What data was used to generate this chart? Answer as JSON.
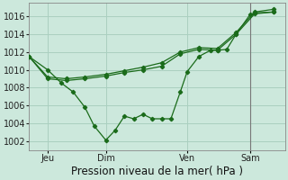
{
  "bg_color": "#cce8dc",
  "grid_color": "#aacfc0",
  "line_color": "#1a6b1a",
  "marker_color": "#1a6b1a",
  "xlabel": "Pression niveau de la mer( hPa )",
  "ylim": [
    1001.0,
    1017.5
  ],
  "yticks": [
    1002,
    1004,
    1006,
    1008,
    1010,
    1012,
    1014,
    1016
  ],
  "xlim": [
    0.0,
    11.0
  ],
  "xtick_labels": [
    "Jeu",
    "Dim",
    "Ven",
    "Sam"
  ],
  "xtick_positions": [
    0.8,
    3.3,
    6.8,
    9.5
  ],
  "vline_x": 9.5,
  "series1_x": [
    0.0,
    0.8,
    1.6,
    2.4,
    3.3,
    4.1,
    4.9,
    5.7,
    6.5,
    7.3,
    8.1,
    8.9,
    9.7,
    10.5
  ],
  "series1_y": [
    1011.5,
    1009.0,
    1008.8,
    1009.0,
    1009.3,
    1009.7,
    1010.0,
    1010.4,
    1011.8,
    1012.3,
    1012.2,
    1014.0,
    1016.3,
    1016.5
  ],
  "series2_x": [
    0.0,
    0.8,
    1.6,
    2.4,
    3.3,
    4.1,
    4.9,
    5.7,
    6.5,
    7.3,
    8.1,
    8.9,
    9.7,
    10.5
  ],
  "series2_y": [
    1011.5,
    1009.2,
    1009.0,
    1009.2,
    1009.5,
    1009.9,
    1010.3,
    1010.8,
    1012.0,
    1012.5,
    1012.4,
    1014.2,
    1016.5,
    1016.8
  ],
  "series3_x": [
    0.0,
    0.8,
    1.4,
    1.9,
    2.4,
    2.8,
    3.3,
    3.7,
    4.1,
    4.5,
    4.9,
    5.3,
    5.7,
    6.1,
    6.5,
    6.8,
    7.3,
    7.8,
    8.1,
    8.5,
    8.9,
    9.5,
    9.7,
    10.5
  ],
  "series3_y": [
    1011.5,
    1010.0,
    1008.5,
    1007.5,
    1005.8,
    1003.7,
    1002.1,
    1003.2,
    1004.8,
    1004.5,
    1005.0,
    1004.5,
    1004.5,
    1004.5,
    1007.5,
    1009.8,
    1011.5,
    1012.2,
    1012.2,
    1012.3,
    1014.0,
    1016.2,
    1016.4,
    1016.5
  ],
  "xlabel_fontsize": 8.5,
  "tick_fontsize": 7.0
}
